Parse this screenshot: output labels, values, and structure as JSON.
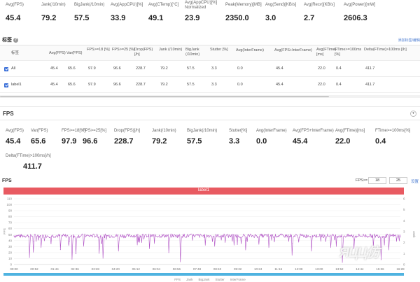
{
  "top_stats": [
    {
      "label": "Avg(FPS)",
      "value": "45.4"
    },
    {
      "label": "Jank(/10min)",
      "value": "79.2"
    },
    {
      "label": "BigJank(/10min)",
      "value": "57.5"
    },
    {
      "label": "Avg(AppCPU)[%]",
      "value": "33.9"
    },
    {
      "label": "Avg(CTemp)[°C]",
      "value": "49.1"
    },
    {
      "label": "Avg(AppCPU)[%] Normalized",
      "value": "23.9"
    },
    {
      "label": "Peak(Memory)[MB]",
      "value": "2350.0"
    },
    {
      "label": "Avg(Send)[KB/s]",
      "value": "3.0"
    },
    {
      "label": "Avg(Recv)[KB/s]",
      "value": "2.7"
    },
    {
      "label": "Avg(Power)[mW]",
      "value": "2606.3"
    }
  ],
  "label_section": {
    "title": "标签",
    "help": "?",
    "link": "添加标签/编辑"
  },
  "label_table": {
    "headers": [
      "标签",
      "Avg(FPS)",
      "Var(FPS)",
      "FPS>=18 [%]",
      "FPS>=25 [%]",
      "Drop(FPS) [/h]",
      "Jank (/10min)",
      "BigJank (/10min)",
      "Stutter [%]",
      "Avg(InterFrame)",
      "Avg(FPS+InterFrame)",
      "Avg(FTime) [ms]",
      "FTime>=100ms [%]",
      "Delta(FTime)>100ms [/h]"
    ],
    "rows": [
      [
        "All",
        "45.4",
        "65.6",
        "97.9",
        "96.6",
        "228.7",
        "79.2",
        "57.5",
        "3.3",
        "0.0",
        "45.4",
        "22.0",
        "0.4",
        "411.7"
      ],
      [
        "label1",
        "45.4",
        "65.6",
        "97.9",
        "96.6",
        "228.7",
        "79.2",
        "57.5",
        "3.3",
        "0.0",
        "45.4",
        "22.0",
        "0.4",
        "411.7"
      ]
    ]
  },
  "fps_section": {
    "title": "FPS",
    "collapse": "▾"
  },
  "fps_stats": [
    {
      "label": "Avg(FPS)",
      "value": "45.4"
    },
    {
      "label": "Var(FPS)",
      "value": "65.6"
    },
    {
      "label": "FPS>=18[%]",
      "value": "97.9"
    },
    {
      "label": "FPS>=25[%]",
      "value": "96.6"
    },
    {
      "label": "Drop(FPS)[/h]",
      "value": "228.7"
    },
    {
      "label": "Jank(/10min)",
      "value": "79.2"
    },
    {
      "label": "BigJank(/10min)",
      "value": "57.5"
    },
    {
      "label": "Stutter[%]",
      "value": "3.3"
    },
    {
      "label": "Avg(InterFrame)",
      "value": "0.0"
    },
    {
      "label": "Avg(FPS+InterFrame)",
      "value": "45.4"
    },
    {
      "label": "Avg(FTime)[ms]",
      "value": "22.0"
    },
    {
      "label": "FTime>=100ms[%]",
      "value": "0.4"
    },
    {
      "label": "Delta(FTime)>100ms[/h]",
      "value": "411.7"
    }
  ],
  "chart_header": {
    "title": "FPS",
    "filter_label": "FPS>=",
    "filter_a": "18",
    "filter_b": "25",
    "filter_ok": "设置"
  },
  "label_bar": "label1",
  "legend": [
    "FPS",
    "Jank",
    "BigJank",
    "Stutter",
    "InterFrame"
  ],
  "watermark": "ЯЦЦ仿",
  "chart_data": {
    "type": "line",
    "xlabel": "",
    "ylabel": "FPS",
    "y2label": "Jank",
    "ylim": [
      0,
      110
    ],
    "yticks": [
      0,
      10,
      20,
      30,
      40,
      50,
      60,
      70,
      80,
      90,
      100,
      110
    ],
    "y2ticks": [
      0,
      1,
      2,
      3,
      4,
      5,
      6
    ],
    "x_labels": [
      "00:00",
      "00:52",
      "01:44",
      "02:36",
      "03:28",
      "04:20",
      "05:12",
      "06:04",
      "06:56",
      "07:48",
      "08:40",
      "09:32",
      "10:24",
      "11:16",
      "12:08",
      "13:00",
      "13:52",
      "14:44",
      "15:36",
      "16:28"
    ],
    "baseline": 48,
    "series": [
      {
        "name": "FPS",
        "color": "#b256c6",
        "dips": [
          [
            0.04,
            12
          ],
          [
            0.05,
            20
          ],
          [
            0.07,
            28
          ],
          [
            0.12,
            25
          ],
          [
            0.15,
            8
          ],
          [
            0.16,
            18
          ],
          [
            0.18,
            30
          ],
          [
            0.22,
            18
          ],
          [
            0.23,
            10
          ],
          [
            0.27,
            22
          ],
          [
            0.35,
            26
          ],
          [
            0.4,
            20
          ],
          [
            0.43,
            4
          ],
          [
            0.52,
            30
          ],
          [
            0.57,
            32
          ],
          [
            0.6,
            24
          ],
          [
            0.66,
            28
          ],
          [
            0.72,
            15
          ],
          [
            0.77,
            22
          ],
          [
            0.82,
            28
          ],
          [
            0.85,
            3
          ],
          [
            0.88,
            26
          ],
          [
            0.93,
            30
          ],
          [
            0.95,
            8
          ],
          [
            0.97,
            24
          ]
        ]
      }
    ]
  }
}
